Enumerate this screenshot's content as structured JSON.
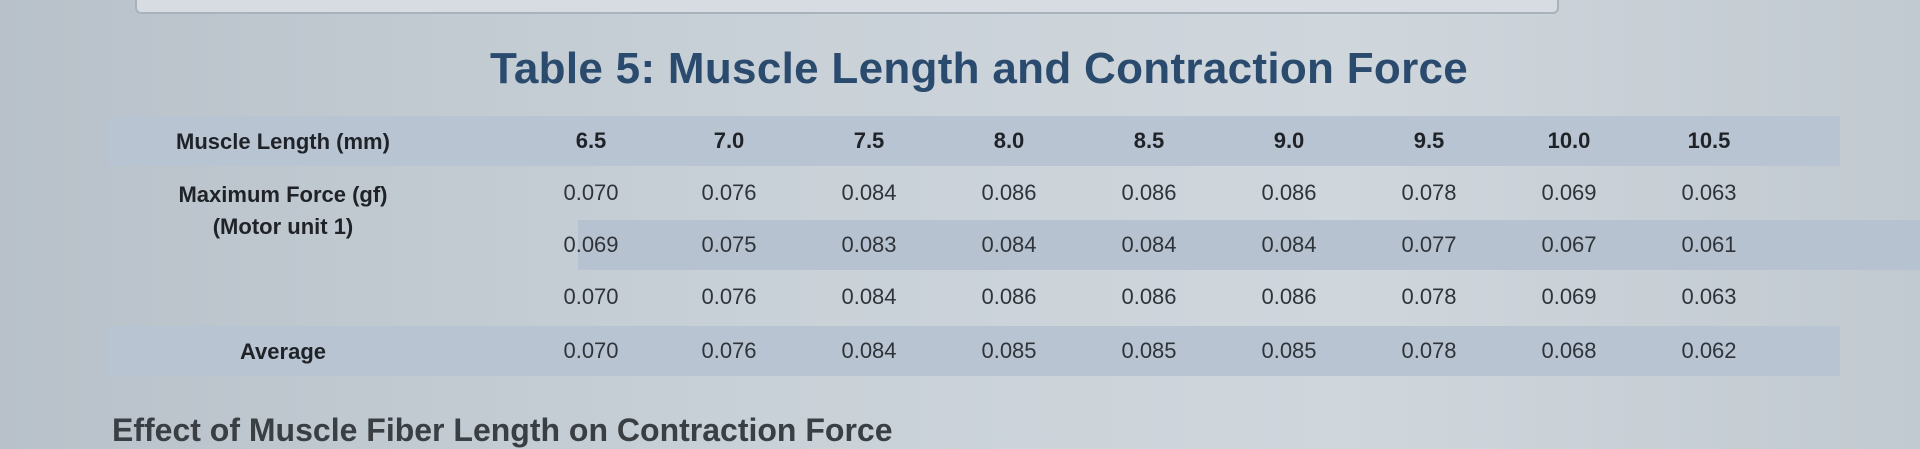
{
  "title": "Table 5: Muscle Length and Contraction Force",
  "table": {
    "header_label": "Muscle Length (mm)",
    "force_label_line1": "Maximum Force (gf)",
    "force_label_line2": "(Motor unit 1)",
    "average_label": "Average",
    "lengths": [
      "6.5",
      "7.0",
      "7.5",
      "8.0",
      "8.5",
      "9.0",
      "9.5",
      "10.0",
      "10.5"
    ],
    "trials": [
      [
        "0.070",
        "0.076",
        "0.084",
        "0.086",
        "0.086",
        "0.086",
        "0.078",
        "0.069",
        "0.063"
      ],
      [
        "0.069",
        "0.075",
        "0.083",
        "0.084",
        "0.084",
        "0.084",
        "0.077",
        "0.067",
        "0.061"
      ],
      [
        "0.070",
        "0.076",
        "0.084",
        "0.086",
        "0.086",
        "0.086",
        "0.078",
        "0.069",
        "0.063"
      ]
    ],
    "average": [
      "0.070",
      "0.076",
      "0.084",
      "0.085",
      "0.085",
      "0.085",
      "0.078",
      "0.068",
      "0.062"
    ]
  },
  "bottom_heading": "Effect of Muscle Fiber Length on Contraction Force"
}
